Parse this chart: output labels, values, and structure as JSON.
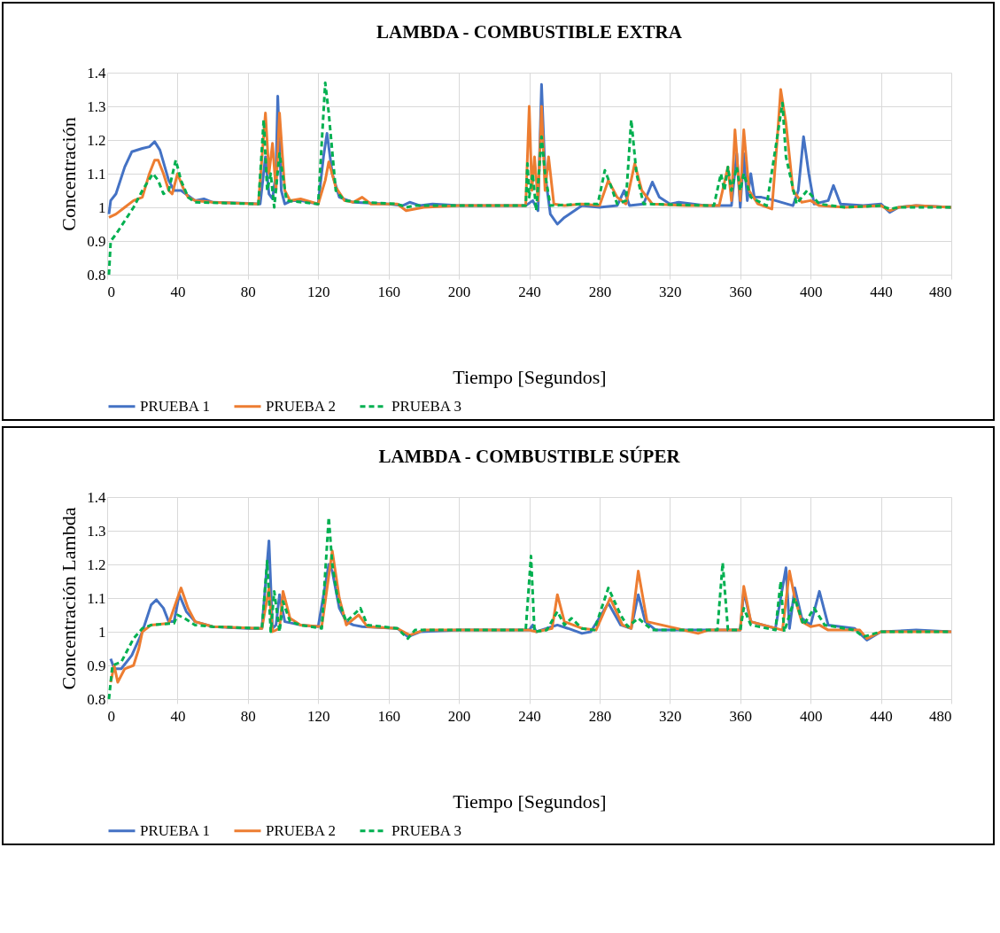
{
  "chart_data": [
    {
      "type": "line",
      "title": "LAMBDA - COMBUSTIBLE EXTRA",
      "xlabel": "Tiempo [Segundos]",
      "ylabel": "Concentración",
      "xlim": [
        0,
        480
      ],
      "xticks": [
        0,
        40,
        80,
        120,
        160,
        200,
        240,
        280,
        320,
        360,
        400,
        440,
        480
      ],
      "ylim": [
        0.8,
        1.4
      ],
      "yticks": [
        0.8,
        0.9,
        1,
        1.1,
        1.2,
        1.3,
        1.4
      ],
      "grid": true,
      "legend": "bottom",
      "series": [
        {
          "name": "PRUEBA 1",
          "color": "#4472c4",
          "line_style": "solid",
          "x": [
            1,
            2,
            5,
            10,
            14,
            20,
            24,
            27,
            30,
            35,
            38,
            42,
            46,
            50,
            55,
            60,
            80,
            87,
            90,
            92,
            94,
            96,
            97,
            99,
            101,
            105,
            110,
            120,
            123,
            125,
            128,
            132,
            140,
            160,
            168,
            172,
            178,
            185,
            200,
            220,
            238,
            242,
            245,
            247,
            249,
            252,
            256,
            260,
            270,
            280,
            290,
            294,
            297,
            305,
            310,
            314,
            320,
            325,
            340,
            355,
            358,
            360,
            362,
            364,
            366,
            368,
            372,
            380,
            390,
            393,
            396,
            399,
            402,
            410,
            413,
            417,
            430,
            440,
            445,
            450,
            460,
            480
          ],
          "values": [
            0.98,
            1.02,
            1.04,
            1.12,
            1.165,
            1.175,
            1.18,
            1.195,
            1.17,
            1.08,
            1.05,
            1.05,
            1.035,
            1.02,
            1.025,
            1.015,
            1.012,
            1.01,
            1.15,
            1.04,
            1.025,
            1.1,
            1.33,
            1.05,
            1.01,
            1.02,
            1.02,
            1.01,
            1.15,
            1.22,
            1.1,
            1.03,
            1.015,
            1.01,
            1.005,
            1.015,
            1.005,
            1.01,
            1.005,
            1.005,
            1.005,
            1.02,
            0.99,
            1.365,
            1.1,
            0.98,
            0.95,
            0.97,
            1.005,
            1,
            1.005,
            1.05,
            1.005,
            1.01,
            1.075,
            1.03,
            1.01,
            1.015,
            1.005,
            1.005,
            1.16,
            1,
            1.16,
            1.02,
            1.1,
            1.03,
            1.03,
            1.02,
            1.005,
            1.05,
            1.21,
            1.1,
            1.01,
            1.02,
            1.065,
            1.01,
            1.005,
            1.01,
            0.985,
            1,
            1.005,
            1
          ]
        },
        {
          "name": "PRUEBA 2",
          "color": "#ed7d31",
          "line_style": "solid",
          "x": [
            1,
            5,
            10,
            15,
            20,
            24,
            27,
            29,
            32,
            35,
            37,
            40,
            43,
            46,
            50,
            60,
            86,
            90,
            92,
            94,
            96,
            98,
            101,
            104,
            110,
            120,
            124,
            126,
            130,
            135,
            140,
            145,
            150,
            165,
            170,
            180,
            200,
            238,
            240,
            241.5,
            243,
            245,
            247,
            249,
            251,
            254,
            260,
            270,
            280,
            285,
            290,
            295,
            300,
            304,
            310,
            330,
            348,
            353,
            355,
            357,
            360,
            362,
            365,
            370,
            378,
            381,
            383,
            386,
            390,
            395,
            400,
            405,
            420,
            440,
            445,
            450,
            460,
            480
          ],
          "values": [
            0.97,
            0.98,
            1,
            1.02,
            1.03,
            1.1,
            1.14,
            1.14,
            1.1,
            1.05,
            1.04,
            1.1,
            1.06,
            1.03,
            1.02,
            1.015,
            1.01,
            1.28,
            1.1,
            1.19,
            1.05,
            1.28,
            1.05,
            1.02,
            1.025,
            1.01,
            1.08,
            1.135,
            1.06,
            1.02,
            1.015,
            1.03,
            1.01,
            1.01,
            0.99,
            1,
            1.005,
            1.005,
            1.3,
            1.05,
            1.15,
            1.02,
            1.3,
            1.05,
            1.15,
            1.01,
            1.005,
            1.01,
            1.005,
            1.08,
            1.03,
            1.01,
            1.13,
            1.05,
            1.01,
            1.005,
            1.005,
            1.12,
            1.02,
            1.23,
            1.02,
            1.23,
            1.05,
            1.01,
            0.995,
            1.2,
            1.35,
            1.25,
            1.05,
            1.015,
            1.02,
            1.005,
            1,
            1.005,
            0.99,
            1,
            1.005,
            1
          ]
        },
        {
          "name": "PRUEBA 3",
          "color": "#00b050",
          "line_style": "dashed",
          "x": [
            1,
            2,
            5,
            10,
            15,
            20,
            26,
            29,
            32,
            35,
            39,
            42,
            46,
            50,
            86,
            89,
            91,
            93,
            95,
            98,
            102,
            120,
            124,
            126,
            130,
            135,
            145,
            165,
            170,
            175,
            238,
            239,
            240,
            242,
            244,
            247,
            249,
            252,
            270,
            279,
            283,
            286,
            290,
            295,
            298,
            301,
            305,
            345,
            349,
            351,
            353,
            355,
            358,
            360,
            362,
            366,
            375,
            384,
            386,
            392,
            398,
            405,
            420,
            440,
            445,
            450,
            480
          ],
          "values": [
            0.8,
            0.9,
            0.92,
            0.96,
            1,
            1.05,
            1.1,
            1.08,
            1.04,
            1.05,
            1.14,
            1.08,
            1.03,
            1.015,
            1.01,
            1.26,
            1.05,
            1.1,
            1,
            1.16,
            1.02,
            1.01,
            1.37,
            1.28,
            1.05,
            1.02,
            1.015,
            1.01,
            1,
            1.005,
            1.005,
            1.13,
            1.03,
            1.1,
            0.99,
            1.21,
            1.1,
            1.005,
            1.01,
            1.01,
            1.11,
            1.07,
            1.01,
            1.02,
            1.26,
            1.1,
            1.01,
            1.005,
            1.1,
            1.05,
            1.12,
            1.05,
            1.12,
            1.05,
            1.1,
            1.03,
            1.005,
            1.31,
            1.15,
            1.01,
            1.05,
            1.01,
            1,
            1.005,
            0.995,
            1,
            1
          ]
        }
      ]
    },
    {
      "type": "line",
      "title": "LAMBDA - COMBUSTIBLE SÚPER",
      "xlabel": "Tiempo [Segundos]",
      "ylabel": "Concentración Lambda",
      "xlim": [
        0,
        480
      ],
      "xticks": [
        0,
        40,
        80,
        120,
        160,
        200,
        240,
        280,
        320,
        360,
        400,
        440,
        480
      ],
      "ylim": [
        0.8,
        1.4
      ],
      "yticks": [
        0.8,
        0.9,
        1,
        1.1,
        1.2,
        1.3,
        1.4
      ],
      "grid": true,
      "legend": "bottom",
      "series": [
        {
          "name": "PRUEBA 1",
          "color": "#4472c4",
          "line_style": "solid",
          "x": [
            2,
            4,
            8,
            14,
            20,
            25,
            28,
            32,
            35,
            38,
            41,
            45,
            50,
            60,
            80,
            88,
            92,
            94,
            96,
            98,
            101,
            110,
            120,
            126,
            128,
            132,
            136,
            140,
            145,
            165,
            171,
            178,
            200,
            240,
            242,
            244,
            250,
            256,
            262,
            270,
            275,
            285,
            292,
            298,
            302,
            306,
            312,
            360,
            362,
            366,
            380,
            386,
            388,
            391,
            395,
            400,
            405,
            410,
            425,
            432,
            440,
            460,
            480
          ],
          "values": [
            0.92,
            0.89,
            0.89,
            0.93,
            1,
            1.08,
            1.095,
            1.07,
            1.03,
            1.03,
            1.11,
            1.06,
            1.03,
            1.015,
            1.01,
            1.01,
            1.27,
            1.01,
            1.02,
            1.11,
            1.03,
            1.02,
            1.015,
            1.2,
            1.18,
            1.07,
            1.03,
            1.02,
            1.015,
            1.01,
            0.985,
            1,
            1.005,
            1.005,
            1.02,
            1,
            1.01,
            1.02,
            1.01,
            0.995,
            1,
            1.085,
            1.02,
            1.01,
            1.11,
            1.03,
            1.005,
            1.005,
            1.12,
            1.03,
            1.01,
            1.19,
            1.01,
            1.13,
            1.04,
            1.02,
            1.12,
            1.02,
            1.01,
            0.975,
            1,
            1.005,
            1
          ]
        },
        {
          "name": "PRUEBA 2",
          "color": "#ed7d31",
          "line_style": "solid",
          "x": [
            2,
            4,
            6,
            10,
            15,
            18,
            20,
            25,
            35,
            40,
            42,
            46,
            50,
            60,
            88,
            92,
            94,
            98,
            100,
            104,
            110,
            122,
            128,
            132,
            136,
            143,
            148,
            165,
            172,
            180,
            240,
            244,
            253,
            256,
            260,
            270,
            278,
            286,
            293,
            298,
            302,
            307,
            336,
            342,
            360,
            362,
            366,
            384,
            388,
            391,
            395,
            400,
            405,
            410,
            428,
            432,
            440,
            480
          ],
          "values": [
            0.85,
            0.9,
            0.85,
            0.89,
            0.9,
            0.95,
            1,
            1.02,
            1.025,
            1.1,
            1.13,
            1.07,
            1.03,
            1.015,
            1.01,
            1.13,
            1,
            1.01,
            1.12,
            1.04,
            1.02,
            1.015,
            1.24,
            1.1,
            1.02,
            1.05,
            1.015,
            1.01,
            0.99,
            1.005,
            1.005,
            1,
            1.01,
            1.11,
            1.03,
            1.01,
            1.005,
            1.1,
            1.02,
            1.01,
            1.18,
            1.03,
            0.995,
            1.005,
            1.005,
            1.135,
            1.03,
            1.005,
            1.18,
            1.1,
            1.03,
            1.015,
            1.02,
            1.005,
            1.005,
            0.98,
            1,
            1
          ]
        },
        {
          "name": "PRUEBA 3",
          "color": "#00b050",
          "line_style": "dashed",
          "x": [
            1,
            3,
            8,
            15,
            20,
            25,
            38,
            40,
            44,
            50,
            60,
            88,
            91,
            93,
            95,
            98,
            100,
            104,
            110,
            122,
            126,
            128,
            131,
            136,
            144,
            148,
            165,
            171,
            175,
            238,
            241,
            243,
            250,
            256,
            260,
            264,
            270,
            277,
            285,
            292,
            296,
            302,
            310,
            347,
            350,
            353,
            360,
            362,
            366,
            380,
            383,
            385,
            391,
            396,
            402,
            408,
            425,
            430,
            440,
            480
          ],
          "values": [
            0.8,
            0.9,
            0.91,
            0.98,
            1.01,
            1.02,
            1.025,
            1.05,
            1.04,
            1.02,
            1.015,
            1.01,
            1.21,
            1,
            1.12,
            1,
            1.09,
            1.03,
            1.02,
            1.01,
            1.34,
            1.2,
            1.1,
            1.03,
            1.07,
            1.02,
            1.01,
            0.98,
            1.005,
            1.005,
            1.225,
            1,
            1.005,
            1.06,
            1.02,
            1.04,
            1.01,
            1.005,
            1.13,
            1.05,
            1.015,
            1.04,
            1.005,
            1.005,
            1.205,
            1.005,
            1.005,
            1.07,
            1.02,
            1.005,
            1.15,
            1,
            1.1,
            1.02,
            1.07,
            1.02,
            1.005,
            0.985,
            1,
            1
          ]
        }
      ]
    }
  ]
}
